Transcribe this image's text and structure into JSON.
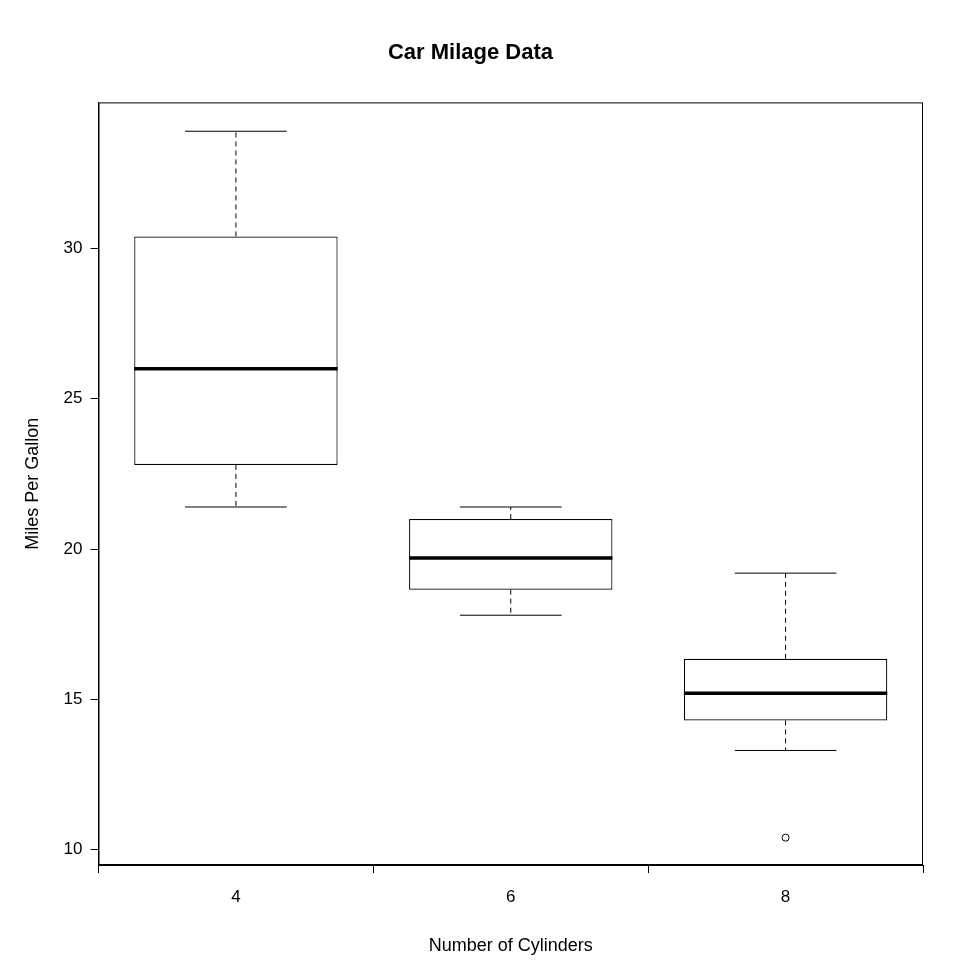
{
  "chart_data": {
    "type": "box",
    "title": "Car Milage Data",
    "x_label": "Number of Cylinders",
    "y_label": "Miles Per Gallon",
    "categories": [
      "4",
      "6",
      "8"
    ],
    "boxes": [
      {
        "whisker_low": 21.4,
        "q1": 22.8,
        "median": 26.0,
        "q3": 30.4,
        "whisker_high": 33.9,
        "outliers": []
      },
      {
        "whisker_low": 17.8,
        "q1": 18.65,
        "median": 19.7,
        "q3": 21.0,
        "whisker_high": 21.4,
        "outliers": []
      },
      {
        "whisker_low": 13.3,
        "q1": 14.3,
        "median": 15.2,
        "q3": 16.35,
        "whisker_high": 19.2,
        "outliers": [
          10.4
        ]
      }
    ],
    "color": "#000000",
    "ylim": [
      9.49,
      34.86
    ],
    "yticks": [
      10,
      15,
      20,
      25,
      30
    ],
    "grid": false
  }
}
